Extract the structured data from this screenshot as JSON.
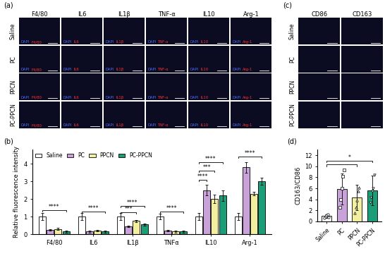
{
  "image_grids": [
    {
      "panel_label": "(a)",
      "stain": "DAPI",
      "columns": [
        "F4/80",
        "IL6",
        "IL1β",
        "TNF-α",
        "IL10",
        "Arg-1"
      ],
      "marker_labels": [
        "F4/80",
        "IL6",
        "IL1β",
        "TNF-α",
        "IL10",
        "Arg-1"
      ],
      "rows": [
        "Saline",
        "PC",
        "PPCN",
        "PC-PPCN"
      ]
    },
    {
      "panel_label": "(c)",
      "columns": [
        "CD86",
        "CD163"
      ],
      "rows": [
        "Saline",
        "PC",
        "PPCN",
        "PC-PPCN"
      ]
    }
  ],
  "chart_data": [
    {
      "type": "bar",
      "panel_label": "(b)",
      "y_label": "Relative fluorescence intensity",
      "categories": [
        "F4/80",
        "IL6",
        "IL1β",
        "TNFα",
        "IL10",
        "Arg-1"
      ],
      "series": [
        {
          "name": "Saline",
          "color": "#ffffff",
          "values": [
            1.0,
            1.0,
            1.0,
            1.0,
            1.0,
            1.0
          ],
          "errors": [
            0.2,
            0.2,
            0.2,
            0.15,
            0.2,
            0.2
          ]
        },
        {
          "name": "PC",
          "color": "#c8a2d8",
          "values": [
            0.25,
            0.15,
            0.45,
            0.2,
            2.5,
            3.8
          ],
          "errors": [
            0.05,
            0.05,
            0.05,
            0.05,
            0.3,
            0.3
          ]
        },
        {
          "name": "PPCN",
          "color": "#f2efa0",
          "values": [
            0.3,
            0.2,
            0.75,
            0.15,
            2.0,
            2.3
          ],
          "errors": [
            0.05,
            0.05,
            0.05,
            0.05,
            0.25,
            0.1
          ]
        },
        {
          "name": "PC-PPCN",
          "color": "#1b9e77",
          "values": [
            0.15,
            0.15,
            0.55,
            0.15,
            2.2,
            3.0
          ],
          "errors": [
            0.05,
            0.05,
            0.05,
            0.05,
            0.3,
            0.2
          ]
        }
      ],
      "ylim": [
        0,
        4.8
      ],
      "yticks": [
        0,
        1,
        2,
        3,
        4
      ],
      "legend": "upper left",
      "significance": [
        {
          "category": "F4/80",
          "to": "PC-PPCN",
          "label": "****",
          "y": 1.35
        },
        {
          "category": "IL6",
          "to": "PC-PPCN",
          "label": "****",
          "y": 1.3
        },
        {
          "category": "IL1β",
          "to": "PC-PPCN",
          "label": "****",
          "y": 1.6
        },
        {
          "category": "IL1β",
          "to": "PPCN",
          "label": "***",
          "y": 1.25
        },
        {
          "category": "TNFα",
          "to": "PC-PPCN",
          "label": "****",
          "y": 1.3
        },
        {
          "category": "IL10",
          "to": "PC-PPCN",
          "label": "****",
          "y": 4.1
        },
        {
          "category": "IL10",
          "to": "PPCN",
          "label": "***",
          "y": 3.6
        },
        {
          "category": "IL10",
          "to": "PC",
          "label": "****",
          "y": 3.1
        },
        {
          "category": "Arg-1",
          "to": "PC-PPCN",
          "label": "****",
          "y": 4.4
        }
      ]
    },
    {
      "type": "bar",
      "panel_label": "(d)",
      "y_label": "CD163/CD86",
      "categories": [
        "Saline",
        "PC",
        "PPCN",
        "PC-PPCN"
      ],
      "values": [
        1.0,
        5.9,
        4.3,
        5.6
      ],
      "errors": [
        0.3,
        2.8,
        2.3,
        2.7
      ],
      "points": [
        [
          0.6,
          0.9,
          1.1,
          1.3,
          0.8
        ],
        [
          2.5,
          4.0,
          6.0,
          8.2,
          9.3
        ],
        [
          1.5,
          2.5,
          3.8,
          5.5,
          6.2
        ],
        [
          3.5,
          4.3,
          5.5,
          6.0,
          8.5
        ]
      ],
      "colors": [
        "#ffffff",
        "#c8a2d8",
        "#f2efa0",
        "#1b9e77"
      ],
      "ylim": [
        0,
        13
      ],
      "yticks": [
        0,
        2,
        4,
        6,
        8,
        10,
        12
      ],
      "significance": [
        {
          "category": "Saline",
          "to": "PC-PPCN",
          "label": "*",
          "y": 11.0
        },
        {
          "category": "Saline",
          "to": "PPCN",
          "label": "",
          "y": 10.3
        }
      ]
    }
  ]
}
